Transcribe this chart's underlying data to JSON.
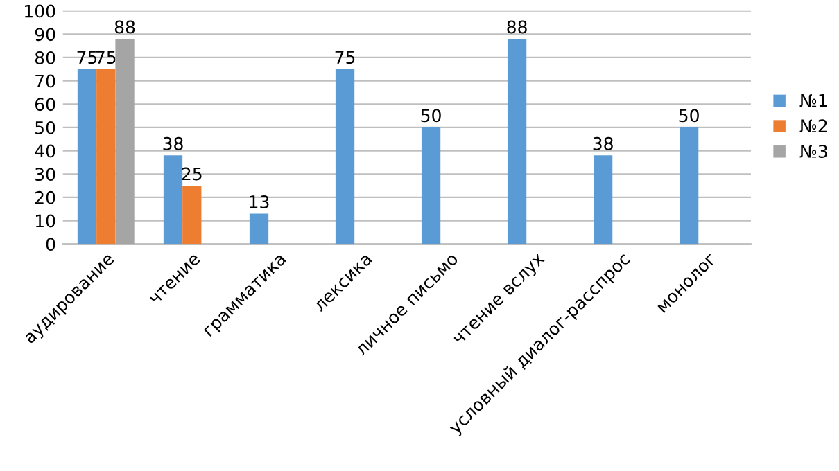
{
  "chart_data": {
    "type": "bar",
    "categories": [
      "аудирование",
      "чтение",
      "грамматика",
      "лексика",
      "личное письмо",
      "чтение вслух",
      "условный диалог-расспрос",
      "монолог"
    ],
    "series": [
      {
        "name": "№1",
        "color": "#5b9bd5",
        "values": [
          75,
          38,
          13,
          75,
          50,
          88,
          38,
          50
        ]
      },
      {
        "name": "№2",
        "color": "#ed7d31",
        "values": [
          75,
          25,
          null,
          null,
          null,
          null,
          null,
          null
        ]
      },
      {
        "name": "№3",
        "color": "#a5a5a5",
        "values": [
          88,
          null,
          null,
          null,
          null,
          null,
          null,
          null
        ]
      }
    ],
    "ylim": [
      0,
      100
    ],
    "yticks": [
      0,
      10,
      20,
      30,
      40,
      50,
      60,
      70,
      80,
      90,
      100
    ],
    "grid": "y",
    "legend": "right",
    "data_labels": true
  }
}
